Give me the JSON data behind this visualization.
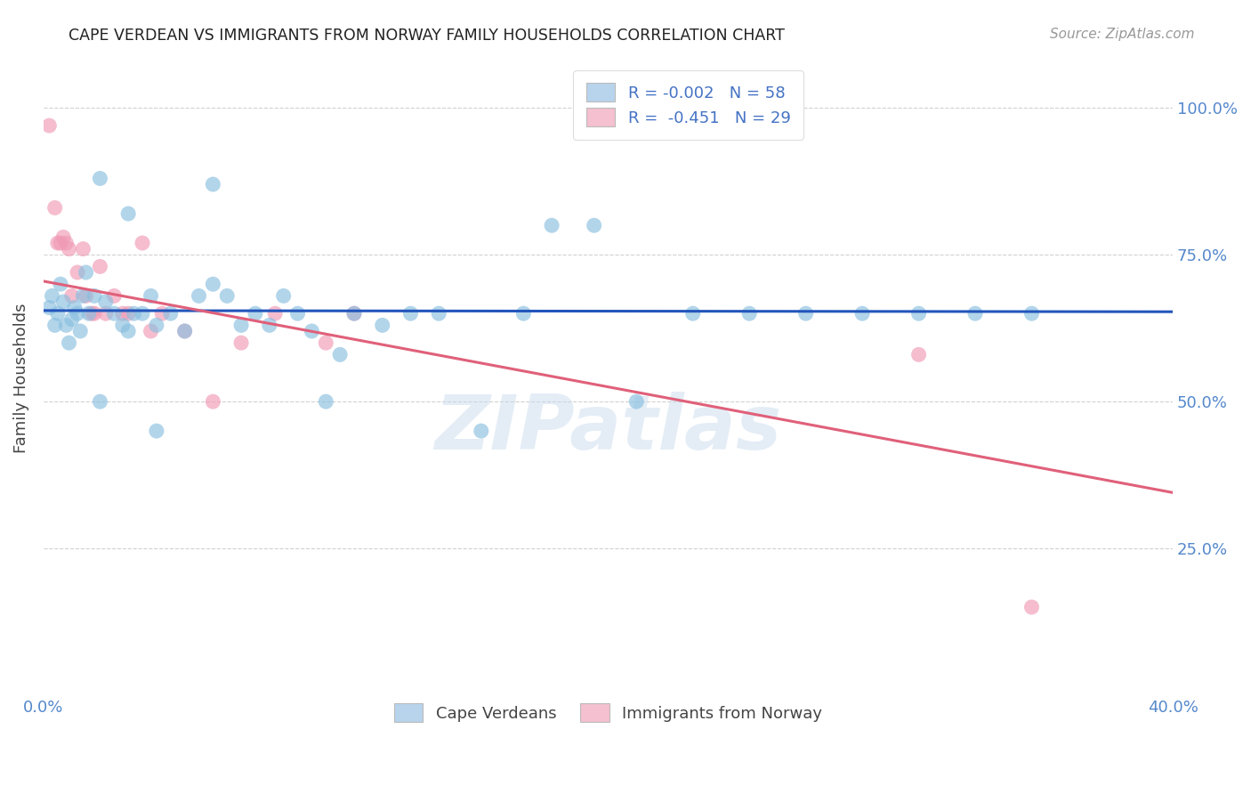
{
  "title": "CAPE VERDEAN VS IMMIGRANTS FROM NORWAY FAMILY HOUSEHOLDS CORRELATION CHART",
  "source": "Source: ZipAtlas.com",
  "ylabel": "Family Households",
  "xmin": 0.0,
  "xmax": 0.4,
  "ymin": 0.0,
  "ymax": 1.08,
  "yticks": [
    0.25,
    0.5,
    0.75,
    1.0
  ],
  "ytick_labels": [
    "25.0%",
    "50.0%",
    "75.0%",
    "100.0%"
  ],
  "xticks": [
    0.0,
    0.05,
    0.1,
    0.15,
    0.2,
    0.25,
    0.3,
    0.35,
    0.4
  ],
  "xtick_labels": [
    "0.0%",
    "",
    "",
    "",
    "",
    "",
    "",
    "",
    "40.0%"
  ],
  "legend_label1": "R = -0.002   N = 58",
  "legend_label2": "R =  -0.451   N = 29",
  "legend_color1": "#b8d4ed",
  "legend_color2": "#f5c0cf",
  "blue_color": "#89bfe0",
  "pink_color": "#f09ab5",
  "trendline_blue": "#2255bb",
  "trendline_pink": "#e0607a",
  "blue_x": [
    0.002,
    0.003,
    0.004,
    0.005,
    0.006,
    0.007,
    0.008,
    0.009,
    0.01,
    0.011,
    0.012,
    0.013,
    0.014,
    0.015,
    0.016,
    0.018,
    0.02,
    0.022,
    0.025,
    0.028,
    0.03,
    0.032,
    0.035,
    0.038,
    0.04,
    0.045,
    0.05,
    0.055,
    0.06,
    0.065,
    0.07,
    0.075,
    0.08,
    0.085,
    0.09,
    0.095,
    0.1,
    0.105,
    0.11,
    0.12,
    0.13,
    0.14,
    0.155,
    0.17,
    0.18,
    0.195,
    0.21,
    0.23,
    0.25,
    0.27,
    0.29,
    0.31,
    0.33,
    0.35,
    0.02,
    0.03,
    0.04,
    0.06
  ],
  "blue_y": [
    0.66,
    0.68,
    0.63,
    0.65,
    0.7,
    0.67,
    0.63,
    0.6,
    0.64,
    0.66,
    0.65,
    0.62,
    0.68,
    0.72,
    0.65,
    0.68,
    0.5,
    0.67,
    0.65,
    0.63,
    0.62,
    0.65,
    0.65,
    0.68,
    0.63,
    0.65,
    0.62,
    0.68,
    0.7,
    0.68,
    0.63,
    0.65,
    0.63,
    0.68,
    0.65,
    0.62,
    0.5,
    0.58,
    0.65,
    0.63,
    0.65,
    0.65,
    0.45,
    0.65,
    0.8,
    0.8,
    0.5,
    0.65,
    0.65,
    0.65,
    0.65,
    0.65,
    0.65,
    0.65,
    0.88,
    0.82,
    0.45,
    0.87
  ],
  "pink_x": [
    0.002,
    0.004,
    0.005,
    0.006,
    0.007,
    0.008,
    0.009,
    0.01,
    0.012,
    0.014,
    0.015,
    0.017,
    0.018,
    0.02,
    0.022,
    0.025,
    0.028,
    0.03,
    0.035,
    0.038,
    0.042,
    0.05,
    0.06,
    0.07,
    0.082,
    0.1,
    0.11,
    0.31,
    0.35
  ],
  "pink_y": [
    0.97,
    0.83,
    0.77,
    0.77,
    0.78,
    0.77,
    0.76,
    0.68,
    0.72,
    0.76,
    0.68,
    0.65,
    0.65,
    0.73,
    0.65,
    0.68,
    0.65,
    0.65,
    0.77,
    0.62,
    0.65,
    0.62,
    0.5,
    0.6,
    0.65,
    0.6,
    0.65,
    0.58,
    0.15
  ],
  "watermark": "ZIPatlas",
  "blue_trendline_x": [
    0.0,
    0.4
  ],
  "blue_trendline_y": [
    0.655,
    0.653
  ],
  "pink_trendline_x": [
    0.0,
    0.4
  ],
  "pink_trendline_y": [
    0.705,
    0.345
  ]
}
